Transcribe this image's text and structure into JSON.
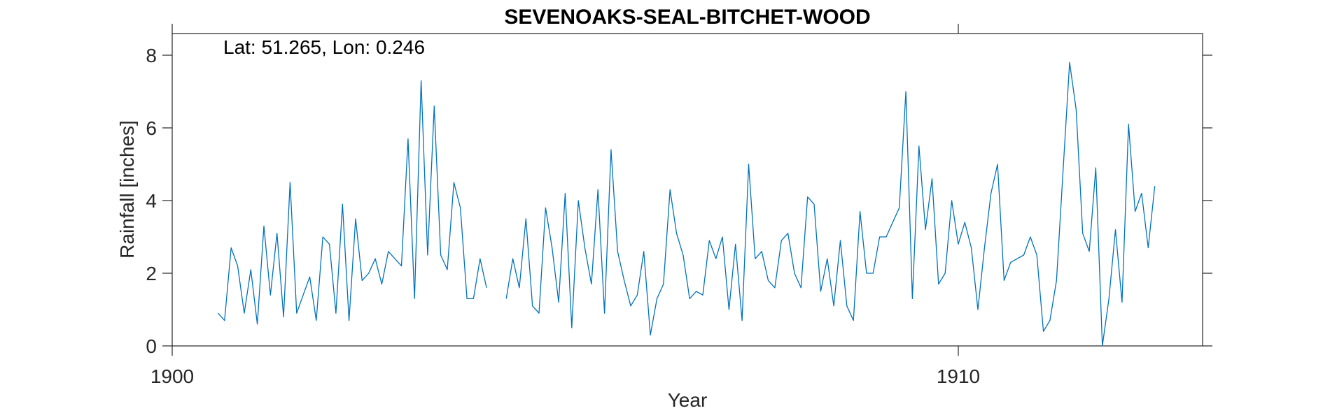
{
  "chart_data": {
    "type": "line",
    "title": "SEVENOAKS-SEAL-BITCHET-WOOD",
    "xlabel": "Year",
    "ylabel": "Rainfall [inches]",
    "annotation": "Lat: 51.265, Lon: 0.246",
    "xlim": [
      1900,
      1913.7
    ],
    "ylim": [
      0,
      8.7
    ],
    "xticks": [
      1900,
      1910
    ],
    "xtick_labels": [
      "1900",
      "1910"
    ],
    "yticks": [
      0,
      2,
      4,
      6,
      8
    ],
    "ytick_labels": [
      "0",
      "2",
      "4",
      "6",
      "8"
    ],
    "grid": false,
    "line_color": "#0072BD",
    "series": [
      {
        "x_start": 1900.583,
        "step": 0.08333,
        "values": [
          0.9,
          0.7,
          2.7,
          2.2,
          0.9,
          2.1,
          0.6,
          3.3,
          1.4,
          3.1,
          0.8,
          4.5,
          0.9,
          1.4,
          1.9,
          0.7,
          3.0,
          2.8,
          0.9,
          3.9,
          0.7,
          3.5,
          1.8,
          2.0,
          2.4,
          1.7,
          2.6,
          2.4,
          2.2,
          5.7,
          1.3,
          7.3,
          2.5,
          6.6,
          2.5,
          2.1,
          4.5,
          3.8,
          1.3,
          1.3,
          2.4,
          1.6,
          null,
          null,
          1.3,
          2.4,
          1.6,
          3.5,
          1.1,
          0.9,
          3.8,
          2.7,
          1.2,
          4.2,
          0.5,
          4.0,
          2.7,
          1.7,
          4.3,
          0.9,
          5.4,
          2.6,
          1.8,
          1.1,
          1.4,
          2.6,
          0.3,
          1.3,
          1.7,
          4.3,
          3.1,
          2.5,
          1.3,
          1.5,
          1.4,
          2.9,
          2.4,
          3.0,
          1.0,
          2.8,
          0.7,
          5.0,
          2.4,
          2.6,
          1.8,
          1.6,
          2.9,
          3.1,
          2.0,
          1.6,
          4.1,
          3.9,
          1.5,
          2.4,
          1.1,
          2.9,
          1.1,
          0.7,
          3.7,
          2.0,
          2.0,
          3.0,
          3.0,
          3.4,
          3.8,
          7.0,
          1.3,
          5.5,
          3.2,
          4.6,
          1.7,
          2.0,
          4.0,
          2.8,
          3.4,
          2.7,
          1.0,
          2.7,
          4.2,
          5.0,
          1.8,
          2.3,
          2.4,
          2.5,
          3.0,
          2.5,
          0.4,
          0.7,
          1.8,
          4.8,
          7.8,
          6.5,
          3.1,
          2.6,
          4.9,
          0.0,
          1.3,
          3.2,
          1.2,
          6.1,
          3.7,
          4.2,
          2.7,
          4.4
        ]
      }
    ]
  }
}
